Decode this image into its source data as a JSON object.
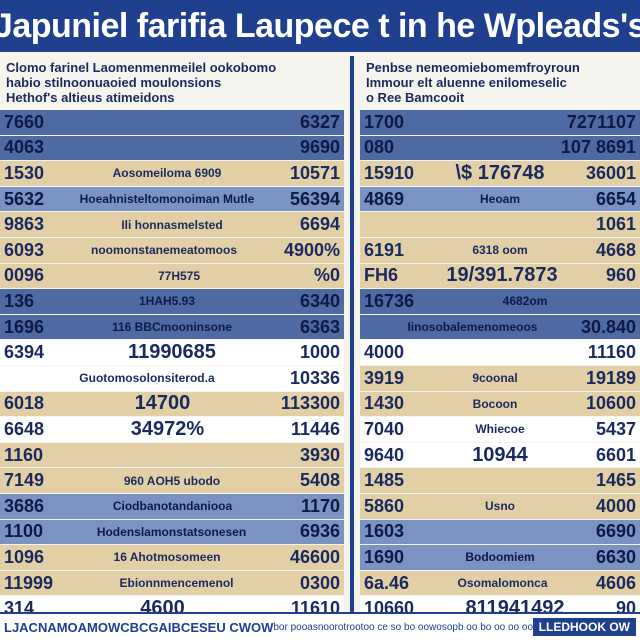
{
  "title": "Japuniel farifia Laupece t in he Wpleads's",
  "chart_data": {
    "type": "table",
    "panels": [
      {
        "header": [
          "Clomo farinel Laomenmenmeilel ookobomo",
          "habio stilnoonuaoied moulonsions",
          "Hethof's altieus atimeidons"
        ],
        "rows": [
          {
            "c1": "7660",
            "c2": "",
            "c3": "6327",
            "style": "blue"
          },
          {
            "c1": "4063",
            "c2": "",
            "c3": "9690",
            "style": "blue"
          },
          {
            "c1": "1530",
            "c2": "Aosomeiloma 6909",
            "c3": "10571",
            "style": "tan"
          },
          {
            "c1": "5632",
            "c2": "Hoeahnisteltomonoiman Mutle",
            "c3": "56394",
            "style": "navy"
          },
          {
            "c1": "9863",
            "c2": "Ili honnasmelsted",
            "c3": "6694",
            "style": "tan"
          },
          {
            "c1": "6093",
            "c2": "noomonstanemeatomoos",
            "c3": "4900%",
            "style": "tan"
          },
          {
            "c1": "0096",
            "c2": "77H575",
            "c3": "%0",
            "style": "tan"
          },
          {
            "c1": "136",
            "c2": "1HAH5.93",
            "c3": "6340",
            "style": "blue"
          },
          {
            "c1": "1696",
            "c2": "116 BBCmooninsone",
            "c3": "6363",
            "style": "blue"
          },
          {
            "c1": "6394",
            "c2": "11990685",
            "c3": "1000",
            "style": "white"
          },
          {
            "c1": "",
            "c2": "Guotomosolonsiterod.a",
            "c3": "10336",
            "style": "white"
          },
          {
            "c1": "6018",
            "c2": "14700",
            "c3": "113300",
            "style": "tan"
          },
          {
            "c1": "6648",
            "c2": "34972%",
            "c3": "11446",
            "style": "white"
          },
          {
            "c1": "1160",
            "c2": "",
            "c3": "3930",
            "style": "tan"
          },
          {
            "c1": "7149",
            "c2": "960 AOH5 ubodo",
            "c3": "5408",
            "style": "tan"
          },
          {
            "c1": "3686",
            "c2": "Ciodbanotandaniooa",
            "c3": "1170",
            "style": "navy"
          },
          {
            "c1": "1100",
            "c2": "Hodenslamonstatsonesen",
            "c3": "6936",
            "style": "navy"
          },
          {
            "c1": "1096",
            "c2": "16 Ahotmosomeen",
            "c3": "46600",
            "style": "tan"
          },
          {
            "c1": "11999",
            "c2": "Ebionnmencemenol",
            "c3": "0300",
            "style": "tan"
          },
          {
            "c1": "314",
            "c2": "4600",
            "c3": "11610",
            "style": "white"
          }
        ]
      },
      {
        "header": [
          "Penbse nemeomiebomemfroyroun",
          "Immour elt aluenne enilomeselic",
          "o Ree Bamcooit"
        ],
        "rows": [
          {
            "c1": "1700",
            "c2": "",
            "c3": "7271107",
            "style": "blue"
          },
          {
            "c1": "080",
            "c2": "",
            "c3": "107 8691",
            "style": "blue"
          },
          {
            "c1": "15910",
            "c2": "\\$ 176748",
            "c3": "36001",
            "style": "tan"
          },
          {
            "c1": "4869",
            "c2": "Heoam",
            "c3": "6654",
            "style": "navy"
          },
          {
            "c1": "",
            "c2": "",
            "c3": "1061",
            "style": "tan"
          },
          {
            "c1": "6191",
            "c2": "6318   oom",
            "c3": "4668",
            "style": "tan"
          },
          {
            "c1": "FH6",
            "c2": "19/391.7873",
            "c3": "960",
            "style": "tan"
          },
          {
            "c1": "16736",
            "c2": "4682om",
            "c3": "",
            "style": "blue"
          },
          {
            "c1": "",
            "c2": "Iinosobalemenomeoos",
            "c3": "30.840",
            "style": "blue"
          },
          {
            "c1": "4000",
            "c2": "",
            "c3": "11160",
            "style": "white"
          },
          {
            "c1": "3919",
            "c2": "9coonal",
            "c3": "19189",
            "style": "tan"
          },
          {
            "c1": "1430",
            "c2": "Bocoon",
            "c3": "10600",
            "style": "tan"
          },
          {
            "c1": "7040",
            "c2": "Whiecoe",
            "c3": "5437",
            "style": "white"
          },
          {
            "c1": "9640",
            "c2": "10944",
            "c3": "6601",
            "style": "white"
          },
          {
            "c1": "1485",
            "c2": "",
            "c3": "1465",
            "style": "tan"
          },
          {
            "c1": "5860",
            "c2": "Usno",
            "c3": "4000",
            "style": "tan"
          },
          {
            "c1": "1603",
            "c2": "",
            "c3": "6690",
            "style": "navy"
          },
          {
            "c1": "1690",
            "c2": "Bodoomiem",
            "c3": "6630",
            "style": "navy"
          },
          {
            "c1": "6a.46",
            "c2": "Osomalomonca",
            "c3": "4606",
            "style": "tan"
          },
          {
            "c1": "10660",
            "c2": "811941492",
            "c3": "90",
            "style": "white"
          }
        ]
      }
    ]
  },
  "footer": {
    "left": "LJACNAMOAMOWCBCGAIBCESEU CWOW",
    "mid": "bor pooasnoorotrootoo ce so bo oowosopb oo bo oo oo oooon",
    "badge": "LLEDHOOK OW"
  },
  "colors": {
    "banner": "#1f3f8f",
    "blue": "#4d6aa3",
    "tan": "#e2cfa6",
    "navy": "#7b93c2"
  }
}
